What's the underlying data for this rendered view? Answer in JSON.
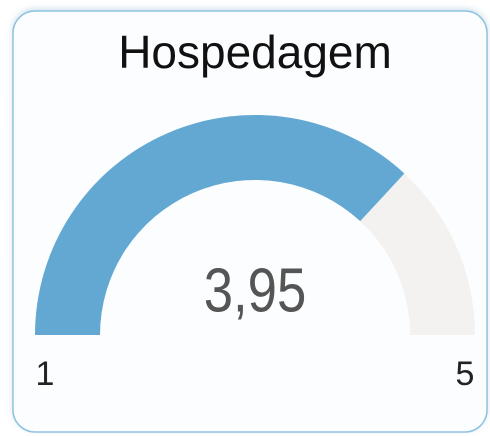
{
  "chart_data": {
    "type": "gauge",
    "title": "Hospedagem",
    "values": [
      3.95
    ],
    "value_labels": [
      "3,95"
    ],
    "ylim": [
      1,
      5
    ],
    "yticks": [
      1,
      5
    ],
    "color": "#62a8d2",
    "track_color": "#f3f2f1"
  }
}
